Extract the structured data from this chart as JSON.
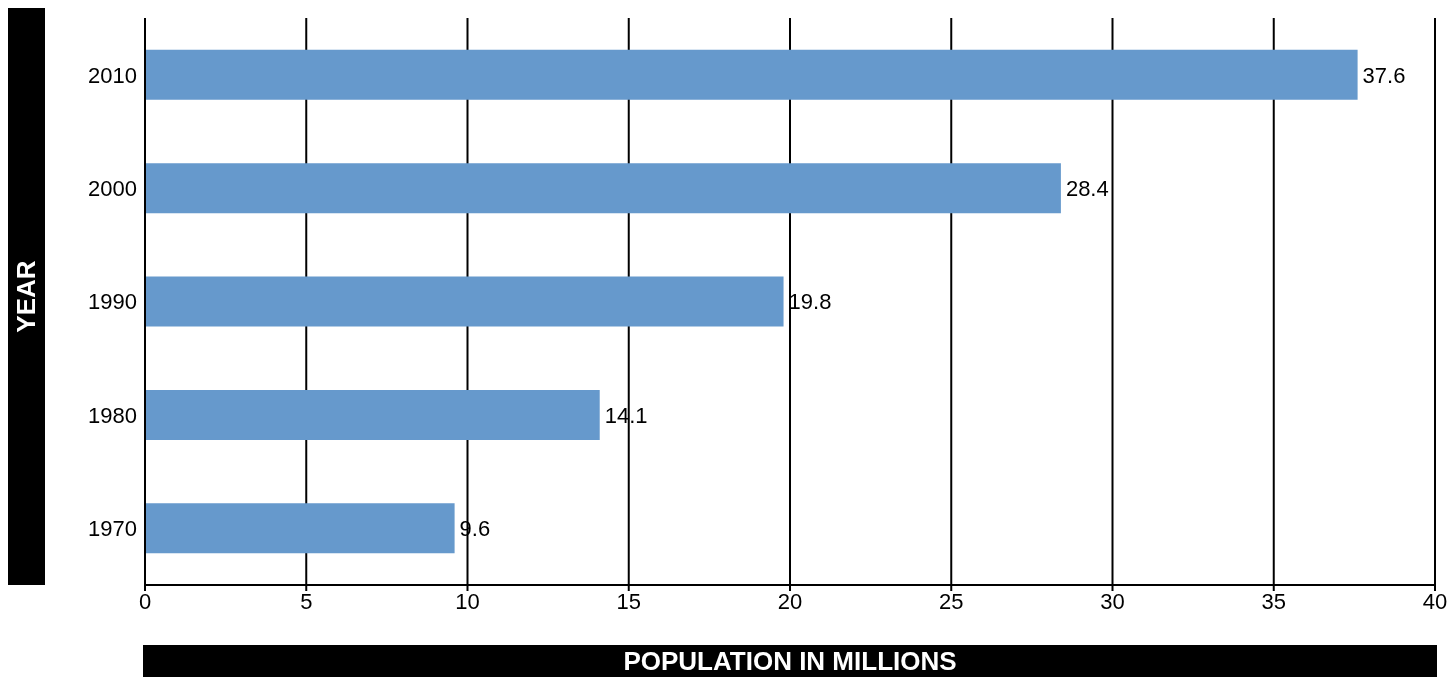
{
  "chart_data": {
    "type": "bar",
    "orientation": "horizontal",
    "xlabel": "POPULATION IN MILLIONS",
    "ylabel": "YEAR",
    "categories": [
      "2010",
      "2000",
      "1990",
      "1980",
      "1970"
    ],
    "values": [
      37.6,
      28.4,
      19.8,
      14.1,
      9.6
    ],
    "color": "#6699cc",
    "xlim": [
      0,
      40
    ],
    "xticks": [
      0,
      5,
      10,
      15,
      20,
      25,
      30,
      35,
      40
    ],
    "grid": "x",
    "data_labels": true
  }
}
